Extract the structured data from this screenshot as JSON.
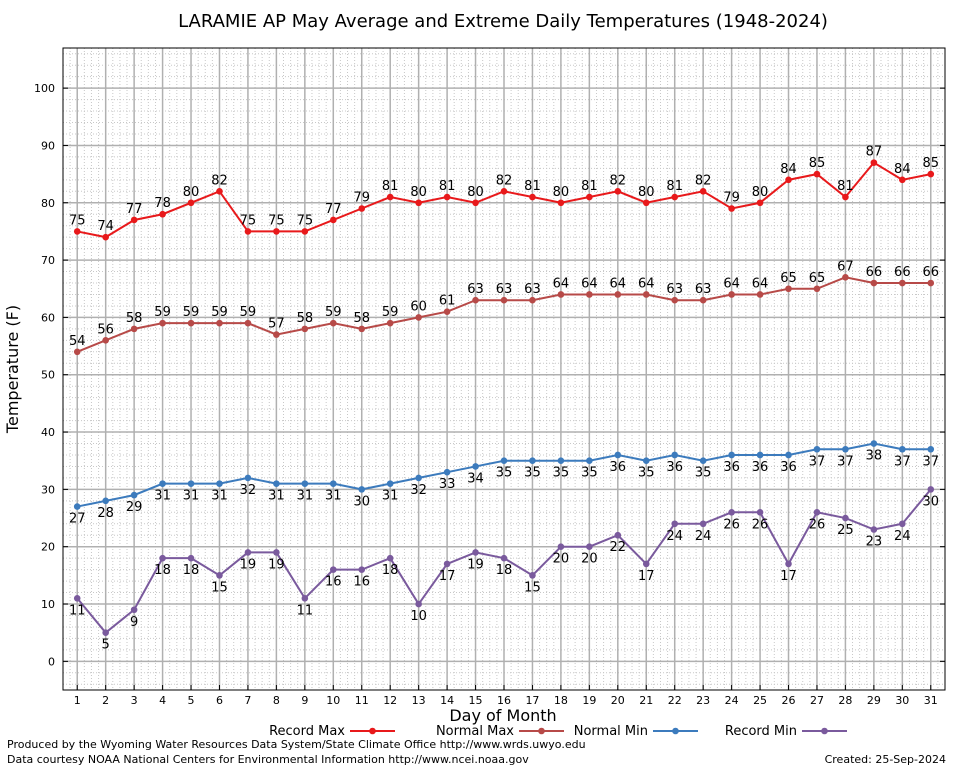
{
  "chart_data": {
    "type": "line",
    "title": "LARAMIE AP May Average and Extreme Daily Temperatures (1948-2024)",
    "xlabel": "Day of Month",
    "ylabel": "Temperature (F)",
    "xlim": [
      0.5,
      31.5
    ],
    "ylim": [
      -5,
      107
    ],
    "yticks": [
      0,
      10,
      20,
      30,
      40,
      50,
      60,
      70,
      80,
      90,
      100
    ],
    "x": [
      1,
      2,
      3,
      4,
      5,
      6,
      7,
      8,
      9,
      10,
      11,
      12,
      13,
      14,
      15,
      16,
      17,
      18,
      19,
      20,
      21,
      22,
      23,
      24,
      25,
      26,
      27,
      28,
      29,
      30,
      31
    ],
    "grid": true,
    "legend_position": "bottom",
    "series": [
      {
        "name": "Record Max",
        "color": "#e8191b",
        "label_pos": "above",
        "values": [
          75,
          74,
          77,
          78,
          80,
          82,
          75,
          75,
          75,
          77,
          79,
          81,
          80,
          81,
          80,
          82,
          81,
          80,
          81,
          82,
          80,
          81,
          82,
          79,
          80,
          84,
          85,
          81,
          87,
          84,
          85
        ]
      },
      {
        "name": "Normal Max",
        "color": "#b74a48",
        "label_pos": "above",
        "values": [
          54,
          56,
          58,
          59,
          59,
          59,
          59,
          57,
          58,
          59,
          58,
          59,
          60,
          61,
          63,
          63,
          63,
          64,
          64,
          64,
          64,
          63,
          63,
          64,
          64,
          65,
          65,
          67,
          66,
          66,
          66
        ]
      },
      {
        "name": "Normal Min",
        "color": "#3c7bbd",
        "label_pos": "below",
        "values": [
          27,
          28,
          29,
          31,
          31,
          31,
          32,
          31,
          31,
          31,
          30,
          31,
          32,
          33,
          34,
          35,
          35,
          35,
          35,
          36,
          35,
          36,
          35,
          36,
          36,
          36,
          37,
          37,
          38,
          37,
          37
        ]
      },
      {
        "name": "Record Min",
        "color": "#7a5a9d",
        "label_pos": "below",
        "values": [
          11,
          5,
          9,
          18,
          18,
          15,
          19,
          19,
          11,
          16,
          16,
          18,
          10,
          17,
          19,
          18,
          15,
          20,
          20,
          22,
          17,
          24,
          24,
          26,
          26,
          17,
          26,
          25,
          23,
          24,
          30
        ]
      }
    ]
  },
  "footer": {
    "line1": "Produced by the Wyoming Water Resources Data System/State Climate Office http://www.wrds.uwyo.edu",
    "line2": "Data courtesy NOAA National Centers for Environmental Information http://www.ncei.noaa.gov",
    "created": "Created:  25-Sep-2024"
  }
}
